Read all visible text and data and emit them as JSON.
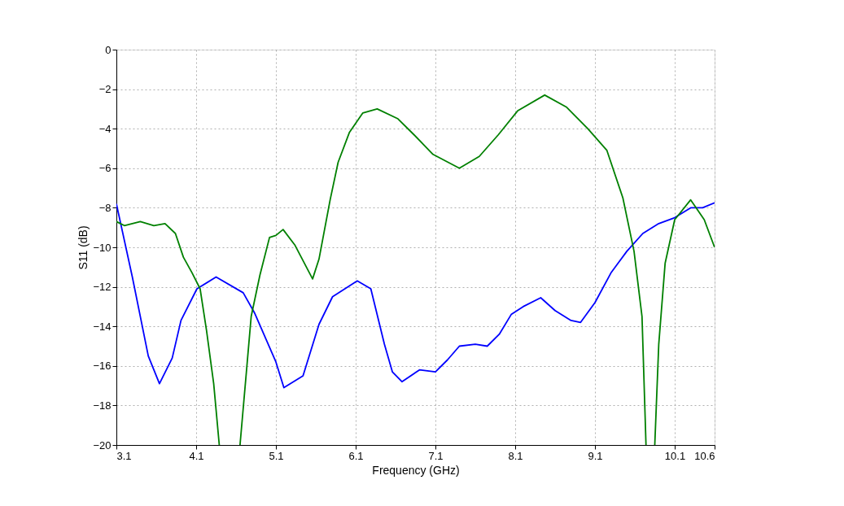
{
  "chart_data": {
    "type": "line",
    "xlabel": "Frequency (GHz)",
    "ylabel": "S11 (dB)",
    "xlim": [
      3.1,
      10.6
    ],
    "xticks": [
      3.1,
      4.1,
      5.1,
      6.1,
      7.1,
      8.1,
      9.1,
      10.1,
      10.6
    ],
    "ylim": [
      -20,
      0
    ],
    "yticks": [
      -20,
      -18,
      -16,
      -14,
      -12,
      -10,
      -8,
      -6,
      -4,
      -2,
      0
    ],
    "grid": true,
    "legend": false,
    "line_style": "solid",
    "series": [
      {
        "color": "#0000ff",
        "x": [
          3.1,
          3.3,
          3.5,
          3.64,
          3.8,
          3.91,
          4.11,
          4.35,
          4.69,
          4.83,
          5.1,
          5.2,
          5.44,
          5.64,
          5.81,
          6.12,
          6.29,
          6.46,
          6.56,
          6.68,
          6.9,
          7.1,
          7.25,
          7.4,
          7.6,
          7.75,
          7.9,
          8.05,
          8.2,
          8.42,
          8.6,
          8.8,
          8.92,
          9.1,
          9.3,
          9.5,
          9.7,
          9.9,
          10.1,
          10.3,
          10.45,
          10.6
        ],
        "values": [
          -7.8,
          -11.5,
          -15.5,
          -16.9,
          -15.6,
          -13.7,
          -12.1,
          -11.5,
          -12.3,
          -13.3,
          -15.8,
          -17.1,
          -16.5,
          -13.9,
          -12.5,
          -11.7,
          -12.1,
          -14.9,
          -16.3,
          -16.8,
          -16.2,
          -16.3,
          -15.7,
          -15.0,
          -14.9,
          -15.0,
          -14.4,
          -13.4,
          -13.0,
          -12.55,
          -13.2,
          -13.7,
          -13.8,
          -12.8,
          -11.3,
          -10.2,
          -9.3,
          -8.8,
          -8.5,
          -8.0,
          -8.0,
          -7.75
        ]
      },
      {
        "color": "#008000",
        "x": [
          3.1,
          3.2,
          3.4,
          3.57,
          3.71,
          3.84,
          3.94,
          4.05,
          4.15,
          4.23,
          4.32,
          4.39,
          4.5,
          4.65,
          4.73,
          4.79,
          4.9,
          5.02,
          5.1,
          5.19,
          5.34,
          5.56,
          5.64,
          5.78,
          5.88,
          6.02,
          6.19,
          6.37,
          6.63,
          6.83,
          7.07,
          7.4,
          7.65,
          7.89,
          8.13,
          8.47,
          8.74,
          9.01,
          9.25,
          9.45,
          9.59,
          9.69,
          9.74,
          9.8,
          9.85,
          9.9,
          9.98,
          10.1,
          10.3,
          10.47,
          10.6
        ],
        "values": [
          -8.7,
          -8.9,
          -8.7,
          -8.9,
          -8.8,
          -9.3,
          -10.5,
          -11.3,
          -12.1,
          -14.2,
          -16.9,
          -20,
          null,
          -20,
          -16.3,
          -13.5,
          -11.4,
          -9.5,
          -9.4,
          -9.1,
          -9.9,
          -11.6,
          -10.6,
          -7.6,
          -5.7,
          -4.2,
          -3.2,
          -3.0,
          -3.5,
          -4.3,
          -5.3,
          -6.0,
          -5.4,
          -4.3,
          -3.1,
          -2.3,
          -2.9,
          -4.0,
          -5.1,
          -7.5,
          -10.2,
          -13.5,
          -20,
          null,
          -20,
          -14.9,
          -10.8,
          -8.6,
          -7.6,
          -8.6,
          -10.0
        ]
      }
    ]
  }
}
